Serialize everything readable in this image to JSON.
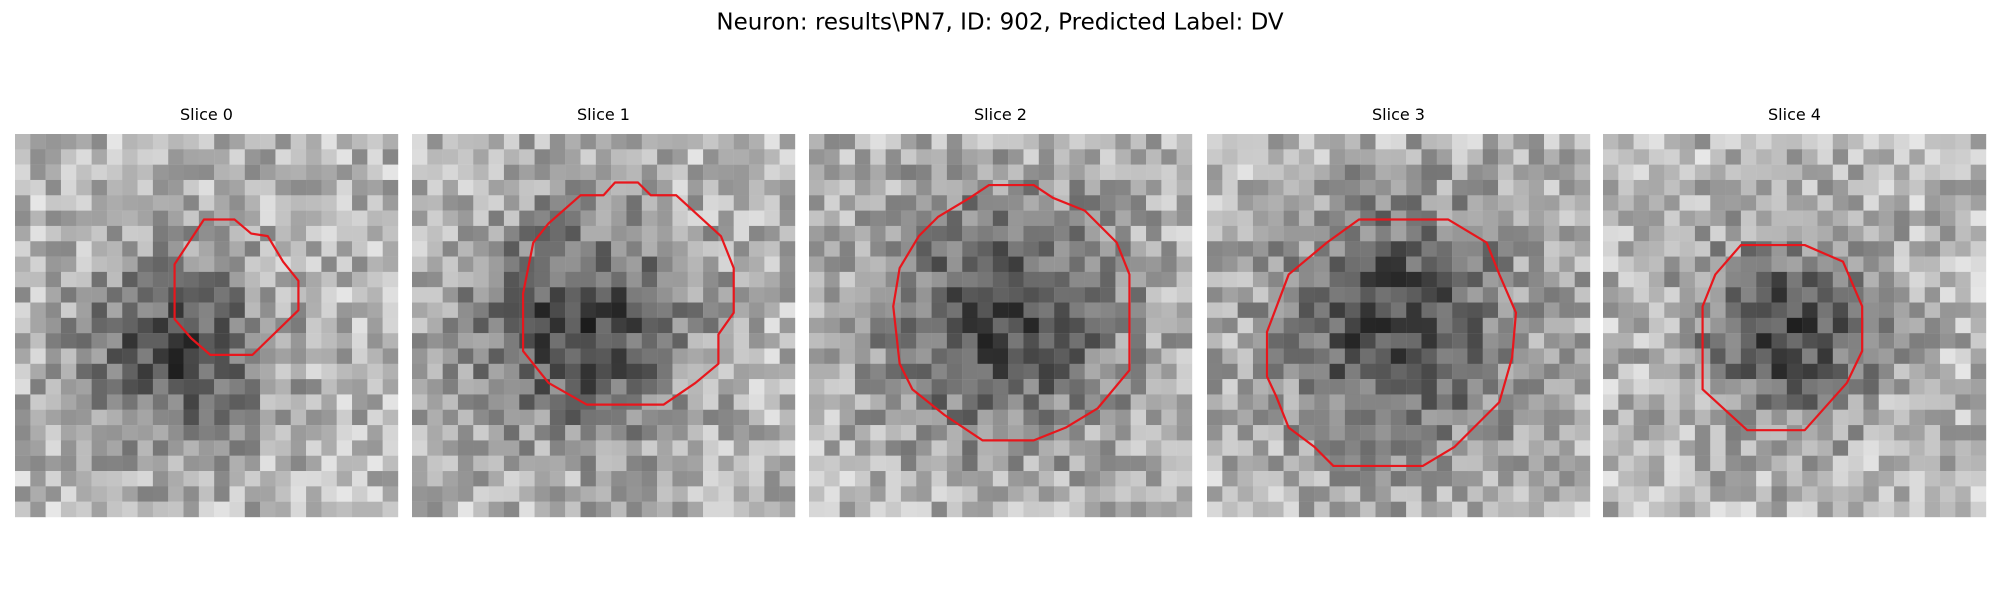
{
  "title": "Neuron: results\\PN7, ID: 902, Predicted Label: DV",
  "panels": [
    {
      "title": "Slice 0"
    },
    {
      "title": "Slice 1"
    },
    {
      "title": "Slice 2"
    },
    {
      "title": "Slice 3"
    },
    {
      "title": "Slice 4"
    }
  ]
}
